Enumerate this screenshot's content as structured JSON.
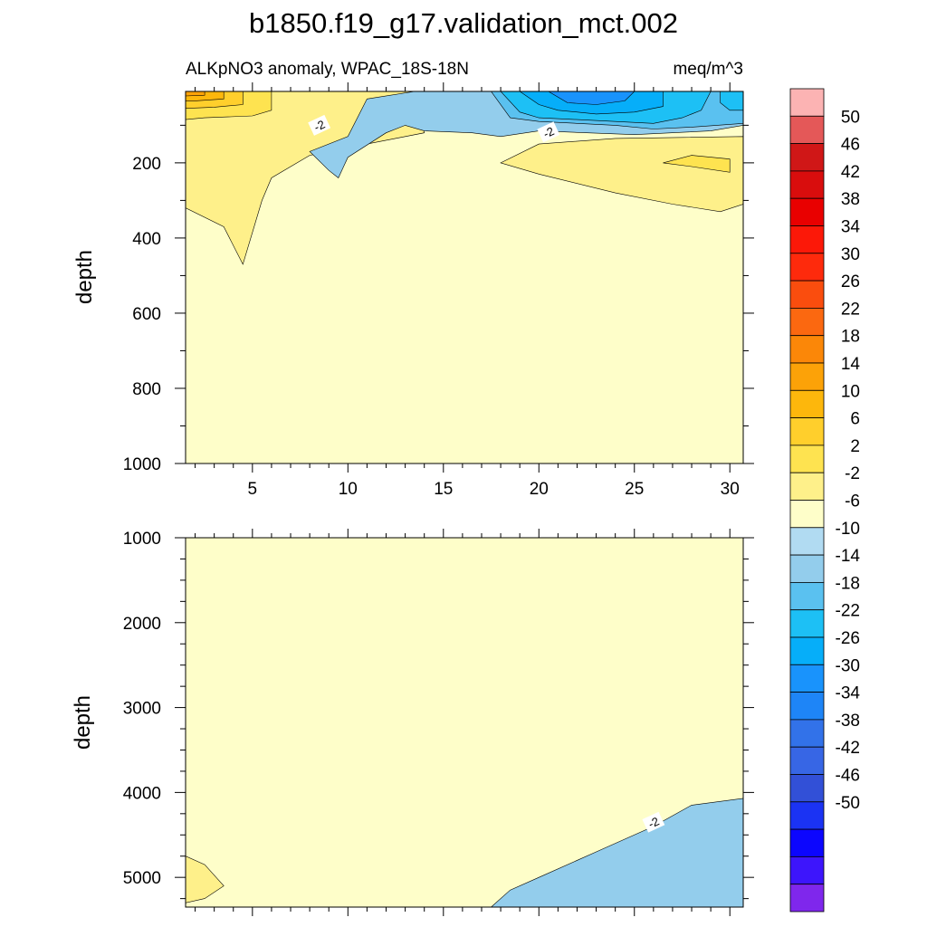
{
  "title": "b1850.f19_g17.validation_mct.002",
  "colors": {
    "positive_ramp": [
      "#fefec9",
      "#fef08a",
      "#fee350",
      "#ffcf2c",
      "#fdb70c",
      "#fca208",
      "#fb8708",
      "#fb6810",
      "#fa4d0e",
      "#fe2a0c",
      "#fc1808",
      "#e90000",
      "#d90d0d",
      "#d01717",
      "#e45858",
      "#fcb3b3"
    ],
    "negative_ramp": [
      "#b1dbf2",
      "#93cdec",
      "#5ac1f0",
      "#1dc0f5",
      "#06aef9",
      "#1993fc",
      "#1e85f7",
      "#3272e9",
      "#3766e5",
      "#3250d7",
      "#1b33f3",
      "#0c06fe",
      "#3d15fc",
      "#7f27ec"
    ]
  },
  "chart_data": [
    {
      "type": "heatmap",
      "subtitle_left": "ALKpNO3 anomaly, WPAC_18S-18N",
      "subtitle_right": "meq/m^3",
      "xlabel": "",
      "ylabel": "depth",
      "xlim": [
        1.5,
        30.7
      ],
      "ylim": [
        1000,
        10
      ],
      "y_inverted": true,
      "x_ticks": [
        5,
        10,
        15,
        20,
        25,
        30
      ],
      "y_ticks": [
        200,
        400,
        600,
        800,
        1000
      ],
      "contour_interval": 4,
      "contour_labels": [
        {
          "x": 8.5,
          "y": 100,
          "text": "-2"
        },
        {
          "x": 20.5,
          "y": 118,
          "text": "-2"
        }
      ],
      "regions": [
        {
          "value": 0,
          "points": [
            [
              1.5,
              10
            ],
            [
              30.7,
              10
            ],
            [
              30.7,
              1000
            ],
            [
              1.5,
              1000
            ]
          ]
        },
        {
          "value": 4,
          "points": [
            [
              1.5,
              10
            ],
            [
              14,
              10
            ],
            [
              14,
              120
            ],
            [
              11,
              150
            ],
            [
              8,
              180
            ],
            [
              6,
              240
            ],
            [
              5.5,
              300
            ],
            [
              4.5,
              470
            ],
            [
              3.5,
              370
            ],
            [
              1.5,
              320
            ]
          ]
        },
        {
          "value": 8,
          "points": [
            [
              1.5,
              10
            ],
            [
              6,
              10
            ],
            [
              6,
              60
            ],
            [
              5,
              75
            ],
            [
              2.5,
              80
            ],
            [
              1.5,
              85
            ]
          ]
        },
        {
          "value": 12,
          "points": [
            [
              1.5,
              10
            ],
            [
              4.5,
              10
            ],
            [
              4.5,
              45
            ],
            [
              3,
              52
            ],
            [
              1.5,
              55
            ]
          ]
        },
        {
          "value": 16,
          "points": [
            [
              1.5,
              10
            ],
            [
              3.5,
              10
            ],
            [
              3.5,
              30
            ],
            [
              2,
              35
            ],
            [
              1.5,
              35
            ]
          ]
        },
        {
          "value": 20,
          "points": [
            [
              1.5,
              10
            ],
            [
              2.5,
              10
            ],
            [
              2.5,
              20
            ],
            [
              1.5,
              22
            ]
          ]
        },
        {
          "value": 4,
          "points": [
            [
              18,
              200
            ],
            [
              20,
              150
            ],
            [
              24,
              135
            ],
            [
              30.7,
              130
            ],
            [
              30.7,
              310
            ],
            [
              29.5,
              330
            ],
            [
              27,
              310
            ],
            [
              24,
              280
            ],
            [
              20,
              230
            ]
          ]
        },
        {
          "value": 8,
          "points": [
            [
              26.5,
              200
            ],
            [
              28,
              180
            ],
            [
              30,
              190
            ],
            [
              30,
              225
            ],
            [
              28,
              210
            ]
          ]
        },
        {
          "value": -4,
          "points": [
            [
              8,
              170
            ],
            [
              10,
              130
            ],
            [
              11,
              30
            ],
            [
              13.5,
              10
            ],
            [
              30.7,
              10
            ],
            [
              30.7,
              100
            ],
            [
              29,
              115
            ],
            [
              25,
              125
            ],
            [
              20,
              115
            ],
            [
              18,
              130
            ],
            [
              16.5,
              120
            ],
            [
              14,
              115
            ],
            [
              13,
              100
            ],
            [
              12,
              120
            ],
            [
              10,
              185
            ],
            [
              9.5,
              240
            ],
            [
              9,
              220
            ]
          ]
        },
        {
          "value": -8,
          "points": [
            [
              17.5,
              10
            ],
            [
              30.7,
              10
            ],
            [
              30.7,
              95
            ],
            [
              28,
              105
            ],
            [
              26,
              110
            ],
            [
              24,
              100
            ],
            [
              22,
              95
            ],
            [
              20,
              90
            ],
            [
              18.5,
              80
            ]
          ]
        },
        {
          "value": -12,
          "points": [
            [
              18,
              10
            ],
            [
              29,
              10
            ],
            [
              28.5,
              60
            ],
            [
              27.5,
              80
            ],
            [
              26,
              95
            ],
            [
              24,
              90
            ],
            [
              22,
              85
            ],
            [
              20,
              80
            ],
            [
              19,
              65
            ]
          ]
        },
        {
          "value": -16,
          "points": [
            [
              19,
              10
            ],
            [
              26.5,
              10
            ],
            [
              26.5,
              50
            ],
            [
              25,
              65
            ],
            [
              23,
              70
            ],
            [
              21,
              60
            ],
            [
              20,
              45
            ]
          ]
        },
        {
          "value": -20,
          "points": [
            [
              20.5,
              10
            ],
            [
              25,
              10
            ],
            [
              24.5,
              35
            ],
            [
              23,
              45
            ],
            [
              21.5,
              40
            ]
          ]
        },
        {
          "value": -12,
          "points": [
            [
              29.5,
              10
            ],
            [
              30.7,
              10
            ],
            [
              30.7,
              60
            ],
            [
              30,
              60
            ],
            [
              29.5,
              40
            ]
          ]
        }
      ]
    },
    {
      "type": "heatmap",
      "xlabel": "",
      "ylabel": "depth",
      "xlim": [
        1.5,
        30.7
      ],
      "ylim": [
        5350,
        1000
      ],
      "y_inverted": true,
      "y_ticks": [
        1000,
        2000,
        3000,
        4000,
        5000
      ],
      "contour_labels": [
        {
          "x": 26,
          "y": 4350,
          "text": "-2"
        }
      ],
      "regions": [
        {
          "value": 0,
          "points": [
            [
              1.5,
              1000
            ],
            [
              30.7,
              1000
            ],
            [
              30.7,
              5350
            ],
            [
              1.5,
              5350
            ]
          ]
        },
        {
          "value": -4,
          "points": [
            [
              17.5,
              5350
            ],
            [
              18.5,
              5150
            ],
            [
              20,
              5000
            ],
            [
              23,
              4700
            ],
            [
              26,
              4400
            ],
            [
              28,
              4150
            ],
            [
              30.7,
              4070
            ],
            [
              30.7,
              5350
            ]
          ]
        },
        {
          "value": 4,
          "points": [
            [
              1.5,
              4750
            ],
            [
              2.5,
              4850
            ],
            [
              3.5,
              5100
            ],
            [
              2.5,
              5250
            ],
            [
              1.5,
              5300
            ]
          ]
        }
      ]
    }
  ],
  "colorbar": {
    "labels": [
      "50",
      "46",
      "42",
      "38",
      "34",
      "30",
      "26",
      "22",
      "18",
      "14",
      "10",
      "6",
      "2",
      "-2",
      "-6",
      "-10",
      "-14",
      "-18",
      "-22",
      "-26",
      "-30",
      "-34",
      "-38",
      "-42",
      "-46",
      "-50"
    ],
    "boxes": [
      "#fcb3b3",
      "#e45858",
      "#d01717",
      "#d90d0d",
      "#e90000",
      "#fc1808",
      "#fe2a0c",
      "#fa4d0e",
      "#fb6810",
      "#fb8708",
      "#fca208",
      "#fdb70c",
      "#ffcf2c",
      "#fee350",
      "#fef08a",
      "#fefec9",
      "#b1dbf2",
      "#93cdec",
      "#5ac1f0",
      "#1dc0f5",
      "#06aef9",
      "#1993fc",
      "#1e85f7",
      "#3272e9",
      "#3766e5",
      "#3250d7",
      "#1b33f3",
      "#0c06fe",
      "#3d15fc",
      "#7f27ec"
    ]
  }
}
